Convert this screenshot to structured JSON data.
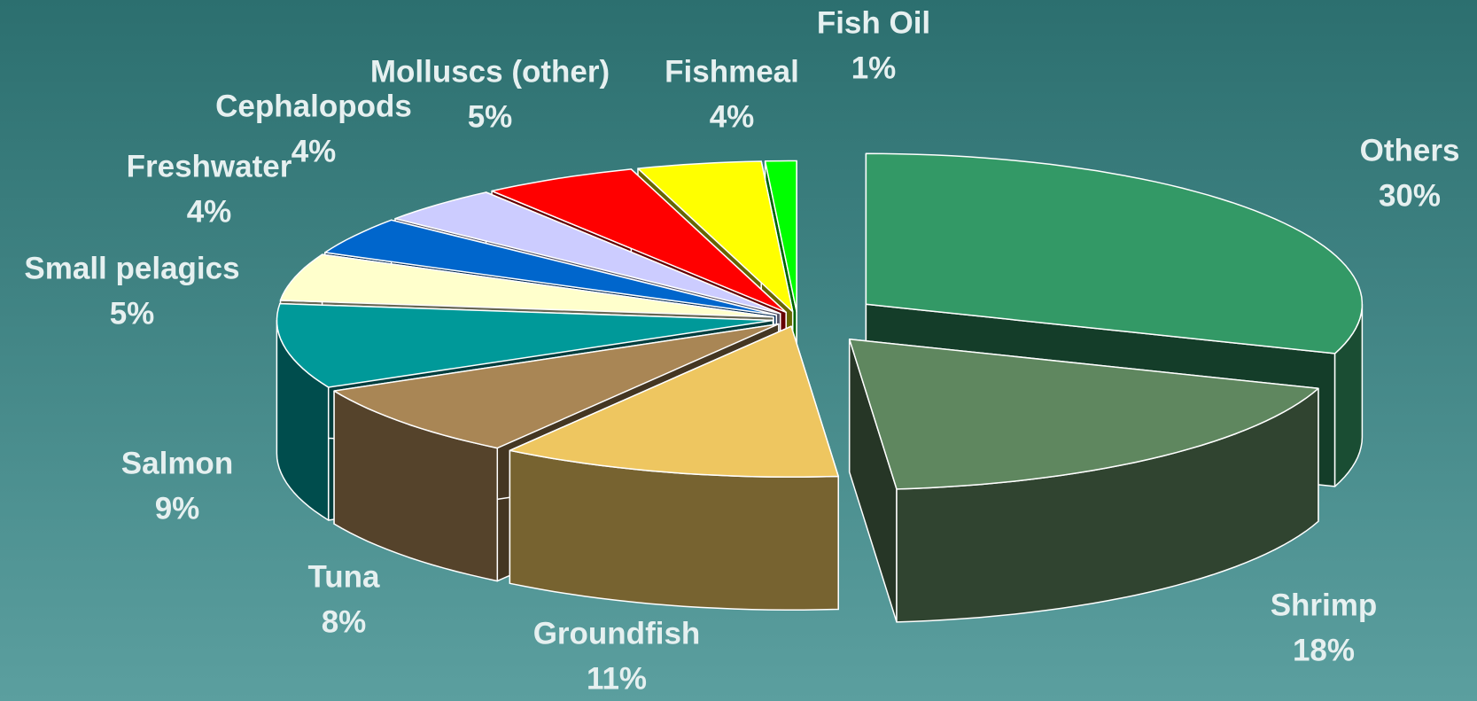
{
  "chart_data": {
    "type": "pie3d",
    "categories": [
      "Others",
      "Shrimp",
      "Groundfish",
      "Tuna",
      "Salmon",
      "Small pelagics",
      "Freshwater",
      "Cephalopods",
      "Molluscs (other)",
      "Fishmeal",
      "Fish Oil"
    ],
    "values": [
      30,
      18,
      11,
      8,
      9,
      5,
      4,
      4,
      5,
      4,
      1
    ],
    "value_labels": [
      "30%",
      "18%",
      "11%",
      "8%",
      "9%",
      "5%",
      "4%",
      "4%",
      "5%",
      "4%",
      "1%"
    ],
    "colors": [
      "#339966",
      "#5f875f",
      "#eec660",
      "#a98655",
      "#009999",
      "#ffffcc",
      "#0066cc",
      "#ccccff",
      "#ff0000",
      "#ffff00",
      "#00ff00"
    ]
  }
}
